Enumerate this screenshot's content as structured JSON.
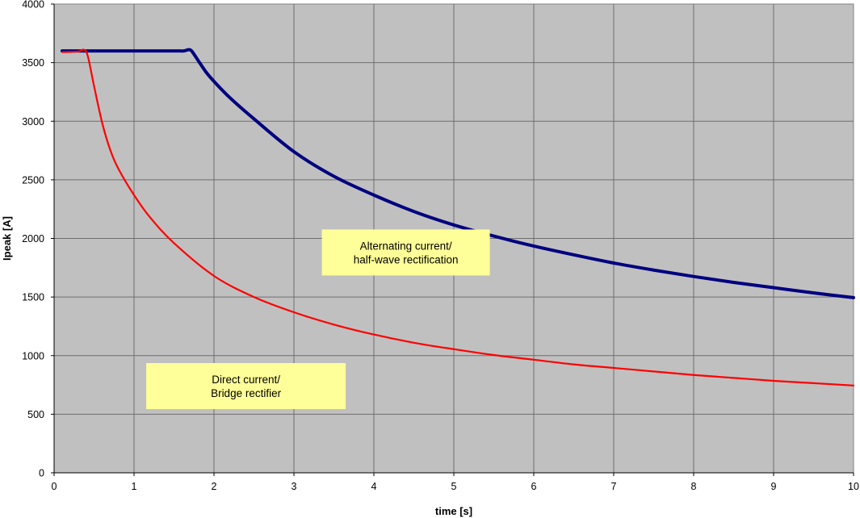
{
  "chart_data": {
    "type": "line",
    "title": "",
    "xlabel": "time [s]",
    "ylabel": "Ipeak [A]",
    "xlim": [
      0,
      10
    ],
    "ylim": [
      0,
      4000
    ],
    "x_ticks": [
      "0",
      "1",
      "2",
      "3",
      "4",
      "5",
      "6",
      "7",
      "8",
      "9",
      "10"
    ],
    "y_ticks": [
      "0",
      "500",
      "1000",
      "1500",
      "2000",
      "2500",
      "3000",
      "3500",
      "4000"
    ],
    "grid": true,
    "plot_background": "#c0c0c0",
    "series": [
      {
        "color": "#000080",
        "x": [
          0.1,
          0.5,
          1.0,
          1.5,
          1.62,
          1.68,
          1.72,
          1.8,
          1.9,
          2.0,
          2.2,
          2.5,
          3.0,
          3.5,
          4.0,
          4.5,
          5.0,
          5.5,
          6.0,
          6.5,
          7.0,
          7.5,
          8.0,
          8.5,
          9.0,
          9.5,
          10.0
        ],
        "y": [
          3600,
          3600,
          3600,
          3600,
          3600,
          3610,
          3600,
          3520,
          3420,
          3340,
          3200,
          3020,
          2740,
          2530,
          2370,
          2230,
          2115,
          2020,
          1935,
          1860,
          1790,
          1730,
          1675,
          1625,
          1580,
          1535,
          1495
        ]
      },
      {
        "color": "#ff0000",
        "x": [
          0.1,
          0.3,
          0.37,
          0.42,
          0.5,
          0.6,
          0.7,
          0.8,
          1.0,
          1.2,
          1.5,
          2.0,
          2.5,
          3.0,
          3.5,
          4.0,
          4.5,
          5.0,
          5.5,
          6.0,
          6.5,
          7.0,
          7.5,
          8.0,
          8.5,
          9.0,
          9.5,
          10.0
        ],
        "y": [
          3590,
          3595,
          3610,
          3560,
          3300,
          2990,
          2760,
          2600,
          2370,
          2180,
          1960,
          1680,
          1500,
          1370,
          1265,
          1180,
          1110,
          1055,
          1005,
          965,
          925,
          895,
          865,
          835,
          810,
          785,
          765,
          745
        ]
      }
    ],
    "annotations": [
      {
        "lines": [
          "Alternating current/",
          "half-wave rectification"
        ],
        "x": 4.4,
        "y": 1880,
        "background": "#ffff99"
      },
      {
        "lines": [
          "Direct current/",
          "Bridge rectifier"
        ],
        "x": 2.4,
        "y": 740,
        "background": "#ffff99"
      }
    ]
  }
}
